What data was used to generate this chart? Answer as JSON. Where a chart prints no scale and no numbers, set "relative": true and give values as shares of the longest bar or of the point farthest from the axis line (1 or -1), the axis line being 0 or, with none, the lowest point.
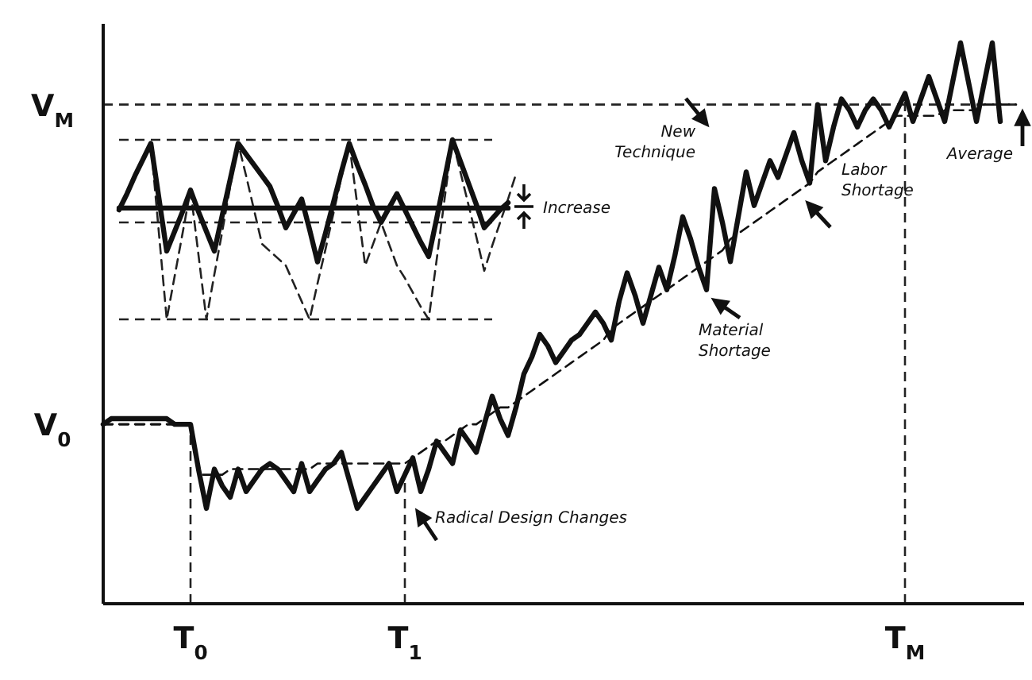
{
  "chart_data": [
    {
      "type": "line",
      "relative": true,
      "categories": [
        null,
        null,
        null,
        null,
        null,
        null,
        null,
        null,
        null,
        null,
        null,
        "T$_{0}$",
        null,
        null,
        null,
        null,
        null,
        null,
        null,
        null,
        null,
        null,
        null,
        null,
        null,
        null,
        null,
        null,
        null,
        null,
        null,
        null,
        null,
        null,
        null,
        null,
        null,
        null,
        "T$_{1}$",
        null,
        null,
        null,
        null,
        null,
        null,
        null,
        null,
        null,
        null,
        null,
        null,
        null,
        null,
        null,
        null,
        null,
        null,
        null,
        null,
        null,
        null,
        null,
        null,
        null,
        null,
        null,
        null,
        null,
        null,
        null,
        null,
        null,
        null,
        null,
        null,
        null,
        null,
        null,
        null,
        null,
        null,
        null,
        null,
        null,
        null,
        null,
        null,
        null,
        null,
        null,
        null,
        null,
        null,
        null,
        null,
        null,
        null,
        null,
        null,
        null,
        null,
        "T$_{M}$",
        null,
        null,
        null,
        null,
        null,
        null,
        null,
        null,
        null,
        null,
        null,
        null,
        null,
        null
      ],
      "series": [
        {
          "color": "#111111",
          "line_style": "solid",
          "values": [
            0.32,
            0.33,
            0.33,
            0.33,
            0.33,
            0.33,
            0.33,
            0.33,
            0.33,
            0.32,
            0.32,
            0.32,
            0.24,
            0.17,
            0.24,
            0.21,
            0.19,
            0.24,
            0.2,
            0.22,
            0.24,
            0.25,
            0.24,
            0.22,
            0.2,
            0.25,
            0.2,
            0.22,
            0.24,
            0.25,
            0.27,
            0.22,
            0.17,
            0.19,
            0.21,
            0.23,
            0.25,
            0.2,
            0.23,
            0.26,
            0.2,
            0.24,
            0.29,
            0.27,
            0.25,
            0.31,
            0.29,
            0.27,
            0.32,
            0.37,
            0.33,
            0.3,
            0.35,
            0.41,
            0.44,
            0.48,
            0.46,
            0.43,
            0.45,
            0.47,
            0.48,
            0.5,
            0.52,
            0.5,
            0.47,
            0.54,
            0.59,
            0.55,
            0.5,
            0.55,
            0.6,
            0.56,
            0.62,
            0.69,
            0.65,
            0.6,
            0.56,
            0.74,
            0.68,
            0.61,
            0.69,
            0.77,
            0.71,
            0.75,
            0.79,
            0.76,
            0.8,
            0.84,
            0.79,
            0.75,
            0.89,
            0.79,
            0.85,
            0.9,
            0.88,
            0.85,
            0.88,
            0.9,
            0.88,
            0.85,
            0.88,
            0.91,
            0.86,
            0.9,
            0.94,
            0.9,
            0.86,
            0.93,
            1,
            0.93,
            0.86,
            0.93,
            1,
            0.86,
            null,
            null
          ]
        },
        {
          "color": "#111111",
          "line_style": "dashed",
          "values": [
            0.32,
            0.32,
            0.32,
            0.32,
            0.32,
            0.32,
            0.32,
            0.32,
            0.32,
            0.32,
            0.32,
            0.32,
            0.23,
            0.23,
            0.23,
            0.23,
            0.24,
            0.24,
            0.24,
            0.24,
            0.24,
            0.24,
            0.24,
            0.24,
            0.24,
            0.24,
            0.24,
            0.25,
            0.25,
            0.25,
            0.25,
            0.25,
            0.25,
            0.25,
            0.25,
            0.25,
            0.25,
            0.25,
            0.25,
            0.26,
            0.27,
            0.28,
            0.29,
            0.29,
            0.3,
            0.31,
            0.32,
            0.32,
            0.33,
            0.34,
            0.35,
            0.35,
            0.36,
            0.37,
            0.38,
            0.39,
            0.4,
            0.41,
            0.42,
            0.43,
            0.44,
            0.45,
            0.46,
            0.47,
            0.49,
            0.5,
            0.51,
            0.52,
            0.53,
            0.54,
            0.55,
            0.56,
            0.57,
            0.58,
            0.59,
            0.6,
            0.61,
            0.62,
            0.63,
            0.65,
            0.66,
            0.67,
            0.68,
            0.69,
            0.7,
            0.71,
            0.72,
            0.73,
            0.74,
            0.75,
            0.77,
            0.78,
            0.79,
            0.8,
            0.81,
            0.82,
            0.83,
            0.84,
            0.85,
            0.86,
            0.87,
            0.87,
            0.87,
            0.87,
            0.87,
            0.87,
            0.88,
            0.88,
            0.88,
            0.88,
            0.88,
            0.89,
            0.89,
            0.89,
            0.89,
            0.89
          ]
        }
      ],
      "ref_lines": [
        {
          "axis": "y",
          "value": 0.89,
          "label": "V$_{M}$",
          "line_style": "dashed"
        },
        {
          "axis": "y",
          "value": 0.32,
          "label": "V$_{0}$",
          "line_style": "dashed"
        },
        {
          "axis": "x",
          "value": "T$_{0}$",
          "line_style": "dashed"
        },
        {
          "axis": "x",
          "value": "T$_{1}$",
          "line_style": "dashed"
        },
        {
          "axis": "x",
          "value": "T$_{M}$",
          "line_style": "dashed"
        }
      ],
      "annotations": [
        "Radical Design Changes",
        "New Technique",
        "Material Shortage",
        "Labor Shortage",
        "Average"
      ]
    },
    {
      "type": "line",
      "relative": true,
      "categories": [
        null,
        null,
        null,
        null,
        null,
        null,
        null,
        null,
        null,
        null,
        null,
        null,
        null,
        null,
        null,
        null,
        null,
        null,
        null,
        null,
        null,
        null,
        null,
        null,
        null,
        null,
        null,
        null,
        null,
        null,
        null,
        null,
        null,
        null,
        null,
        null,
        null,
        null,
        null,
        null,
        null,
        null,
        null,
        null,
        null,
        null,
        null,
        null,
        null,
        null,
        null
      ],
      "series": [
        {
          "color": "#222222",
          "line_style": "dashed",
          "values": [
            0.61,
            0.7,
            0.8,
            0.89,
            0.98,
            0.49,
            0,
            0.24,
            0.48,
            0.72,
            0.36,
            0,
            0.25,
            0.49,
            0.74,
            0.98,
            0.8,
            0.61,
            0.42,
            0.38,
            0.34,
            0.3,
            0.2,
            0.1,
            0,
            0.2,
            0.39,
            0.59,
            0.79,
            0.98,
            0.64,
            0.3,
            0.42,
            0.54,
            0.42,
            0.3,
            0.23,
            0.15,
            0.07,
            0,
            0.33,
            0.67,
            1,
            0.82,
            0.64,
            0.46,
            0.27,
            0.41,
            0.54,
            0.67,
            0.81
          ]
        },
        {
          "color": "#111111",
          "line_style": "solid",
          "values": [
            0.61,
            0.7,
            0.8,
            0.89,
            0.98,
            0.68,
            0.38,
            0.49,
            0.6,
            0.72,
            0.6,
            0.49,
            0.38,
            0.58,
            0.78,
            0.98,
            0.92,
            0.86,
            0.8,
            0.74,
            0.63,
            0.51,
            0.59,
            0.67,
            0.5,
            0.32,
            0.48,
            0.65,
            0.82,
            0.98,
            0.86,
            0.75,
            0.63,
            0.54,
            0.62,
            0.7,
            0.61,
            0.52,
            0.43,
            0.35,
            0.56,
            0.78,
            1,
            0.88,
            0.76,
            0.64,
            0.51,
            0.56,
            0.61,
            0.65,
            null
          ]
        },
        {
          "color": "#111111",
          "line_style": "solid",
          "values": [
            0.62,
            0.62,
            0.62,
            0.62,
            0.62,
            0.62,
            0.62,
            0.62,
            0.62,
            0.62,
            0.62,
            0.62,
            0.62,
            0.62,
            0.62,
            0.62,
            0.62,
            0.62,
            0.62,
            0.62,
            0.62,
            0.62,
            0.62,
            0.62,
            0.62,
            0.62,
            0.62,
            0.62,
            0.62,
            0.62,
            0.62,
            0.62,
            0.62,
            0.62,
            0.62,
            0.62,
            0.62,
            0.62,
            0.62,
            0.62,
            0.62,
            0.62,
            0.62,
            0.62,
            0.62,
            0.62,
            0.62,
            0.62,
            0.62,
            0.62,
            null
          ]
        }
      ],
      "ref_lines": [
        {
          "axis": "y",
          "value": 1,
          "line_style": "dashed"
        },
        {
          "axis": "y",
          "value": 0.54,
          "line_style": "dashed"
        },
        {
          "axis": "y",
          "value": 0,
          "line_style": "dashed"
        }
      ],
      "annotations": [
        "Increase"
      ]
    }
  ]
}
